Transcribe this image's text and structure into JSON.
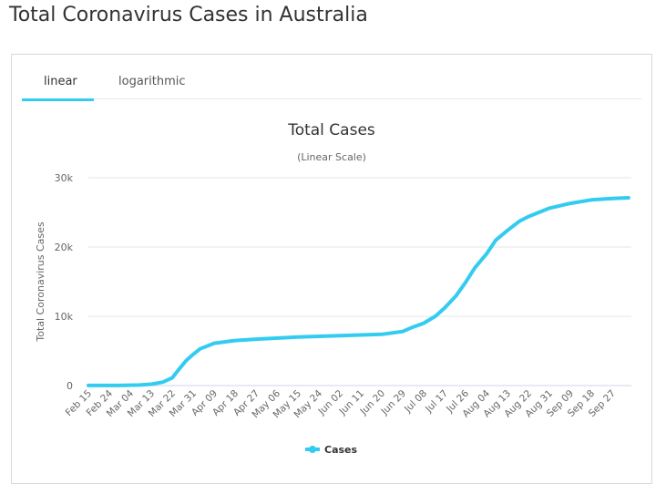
{
  "page_title": "Total Coronavirus Cases in Australia",
  "tabs": [
    {
      "label": "linear",
      "active": true
    },
    {
      "label": "logarithmic",
      "active": false
    }
  ],
  "colors": {
    "series": "#33ccf0",
    "tab_active": "#33ccf0"
  },
  "chart_data": {
    "type": "line",
    "title": "Total Cases",
    "subtitle": "(Linear Scale)",
    "ylabel": "Total Coronavirus Cases",
    "xlabel": "",
    "ylim": [
      0,
      30000
    ],
    "yticks": [
      0,
      10000,
      20000,
      30000
    ],
    "ytick_labels": [
      "0",
      "10k",
      "20k",
      "30k"
    ],
    "xtick_labels": [
      "Feb 15",
      "Feb 24",
      "Mar 04",
      "Mar 13",
      "Mar 22",
      "Mar 31",
      "Apr 09",
      "Apr 18",
      "Apr 27",
      "May 06",
      "May 15",
      "May 24",
      "Jun 02",
      "Jun 11",
      "Jun 20",
      "Jun 29",
      "Jul 08",
      "Jul 17",
      "Jul 26",
      "Aug 04",
      "Aug 13",
      "Aug 22",
      "Aug 31",
      "Sep 09",
      "Sep 18",
      "Sep 27"
    ],
    "grid": "horizontal",
    "legend": "bottom-center",
    "series": [
      {
        "name": "Cases",
        "points": [
          [
            "2020-02-15",
            15
          ],
          [
            "2020-03-01",
            27
          ],
          [
            "2020-03-08",
            80
          ],
          [
            "2020-03-13",
            200
          ],
          [
            "2020-03-18",
            500
          ],
          [
            "2020-03-22",
            1100
          ],
          [
            "2020-03-25",
            2400
          ],
          [
            "2020-03-28",
            3600
          ],
          [
            "2020-03-31",
            4500
          ],
          [
            "2020-04-03",
            5300
          ],
          [
            "2020-04-09",
            6100
          ],
          [
            "2020-04-18",
            6500
          ],
          [
            "2020-04-27",
            6700
          ],
          [
            "2020-05-15",
            7000
          ],
          [
            "2020-06-02",
            7200
          ],
          [
            "2020-06-20",
            7400
          ],
          [
            "2020-06-29",
            7800
          ],
          [
            "2020-07-03",
            8400
          ],
          [
            "2020-07-08",
            9000
          ],
          [
            "2020-07-13",
            10000
          ],
          [
            "2020-07-17",
            11200
          ],
          [
            "2020-07-22",
            13000
          ],
          [
            "2020-07-26",
            14900
          ],
          [
            "2020-07-30",
            17000
          ],
          [
            "2020-08-04",
            19000
          ],
          [
            "2020-08-08",
            21000
          ],
          [
            "2020-08-13",
            22400
          ],
          [
            "2020-08-18",
            23700
          ],
          [
            "2020-08-22",
            24400
          ],
          [
            "2020-08-31",
            25600
          ],
          [
            "2020-09-09",
            26300
          ],
          [
            "2020-09-18",
            26800
          ],
          [
            "2020-09-27",
            27000
          ],
          [
            "2020-10-04",
            27100
          ]
        ]
      }
    ]
  }
}
